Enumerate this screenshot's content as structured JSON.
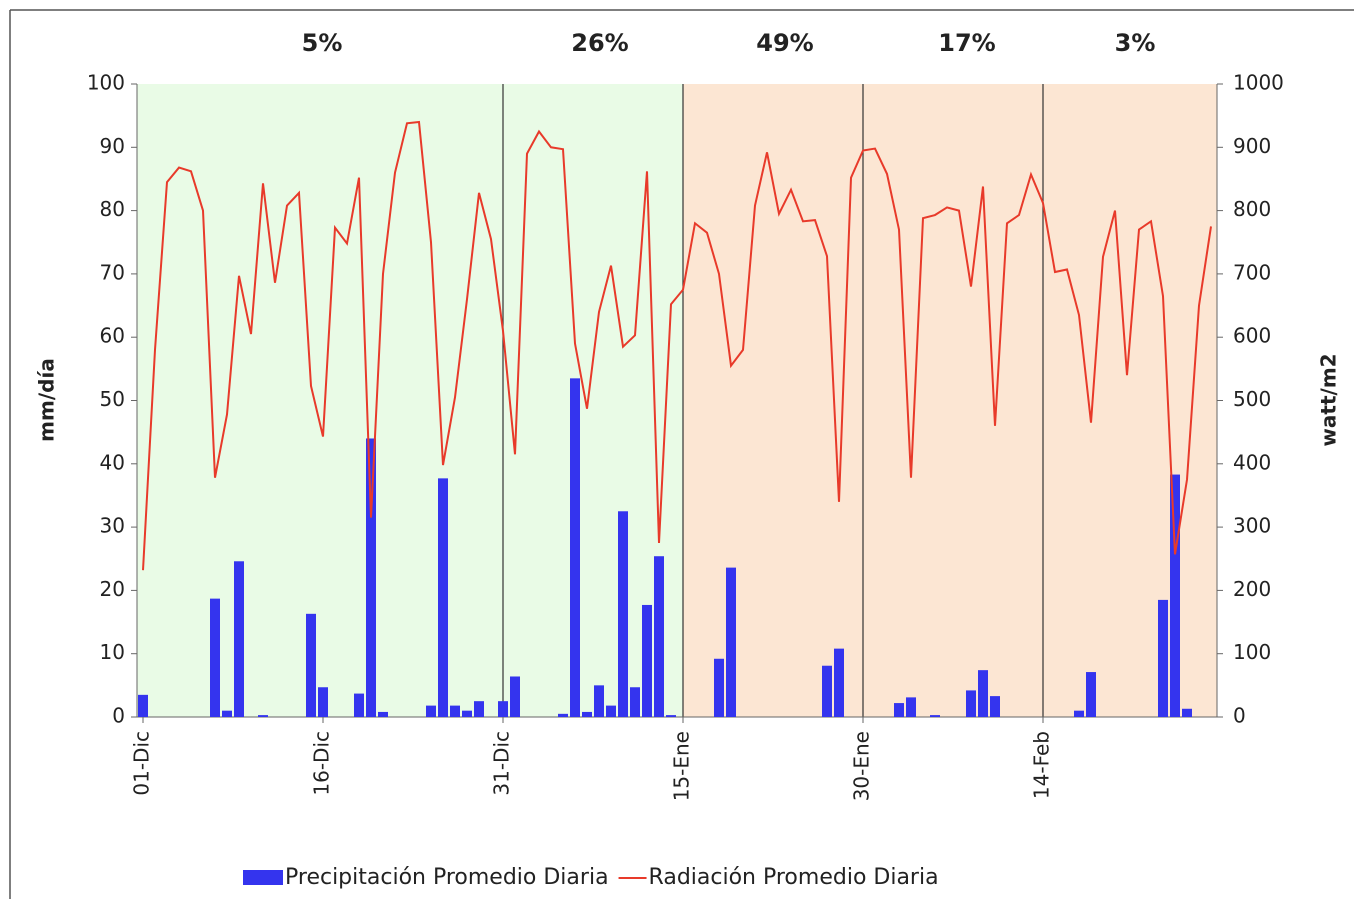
{
  "chart_data": {
    "type": "bar-line",
    "period_labels": [
      "5%",
      "26%",
      "49%",
      "17%",
      "3%"
    ],
    "y_label": "mm/día",
    "y2_label": "watt/m2",
    "categories": [
      "01-Dic",
      null,
      null,
      null,
      null,
      null,
      null,
      null,
      null,
      null,
      null,
      null,
      null,
      null,
      null,
      "16-Dic",
      null,
      null,
      null,
      null,
      null,
      null,
      null,
      null,
      null,
      null,
      null,
      null,
      null,
      null,
      "31-Dic",
      null,
      null,
      null,
      null,
      null,
      null,
      null,
      null,
      null,
      null,
      null,
      null,
      null,
      null,
      "15-Ene",
      null,
      null,
      null,
      null,
      null,
      null,
      null,
      null,
      null,
      null,
      null,
      null,
      null,
      null,
      "30-Ene",
      null,
      null,
      null,
      null,
      null,
      null,
      null,
      null,
      null,
      null,
      null,
      null,
      null,
      null,
      "14-Feb",
      null,
      null,
      null,
      null,
      null,
      null,
      null,
      null,
      null,
      null,
      null,
      null,
      null,
      null
    ],
    "series": [
      {
        "name": "Precipitación Promedio Diaria",
        "type": "bar",
        "color": "#3434ee",
        "values": [
          3.5,
          0,
          0,
          0,
          0,
          0,
          18.7,
          1,
          24.6,
          0,
          0.3,
          0,
          0,
          0,
          16.3,
          4.7,
          0,
          0,
          3.7,
          44,
          0.8,
          0,
          0,
          0,
          1.8,
          37.7,
          1.8,
          1,
          2.5,
          0,
          2.5,
          6.4,
          0,
          0,
          0,
          0.5,
          53.5,
          0.8,
          5,
          1.8,
          32.5,
          4.7,
          17.7,
          25.4,
          0.3,
          0,
          0,
          0,
          9.2,
          23.6,
          0,
          0,
          0,
          0,
          0,
          0,
          0,
          8.1,
          10.8,
          0,
          0,
          0,
          0,
          2.2,
          3.1,
          0,
          0.3,
          0,
          0,
          4.2,
          7.4,
          3.3,
          0,
          0,
          0,
          0,
          0,
          0,
          1,
          7.1,
          0,
          0,
          0,
          0,
          0,
          18.5,
          38.3,
          1.3,
          0,
          0
        ]
      },
      {
        "name": "Radiación Promedio Diaria",
        "type": "line",
        "axis": "y2",
        "color": "#e83a2a",
        "values": [
          232,
          580,
          845,
          868,
          862,
          800,
          378,
          478,
          697,
          605,
          843,
          686,
          808,
          828,
          523,
          443,
          773,
          748,
          852,
          315,
          700,
          860,
          938,
          940,
          750,
          398,
          505,
          660,
          828,
          755,
          610,
          415,
          890,
          925,
          900,
          897,
          590,
          487,
          640,
          713,
          585,
          603,
          862,
          275,
          652,
          675,
          780,
          765,
          700,
          555,
          580,
          808,
          892,
          795,
          833,
          783,
          785,
          728,
          340,
          852,
          895,
          898,
          858,
          770,
          378,
          788,
          793,
          805,
          800,
          680,
          838,
          460,
          780,
          793,
          857,
          812,
          703,
          707,
          635,
          465,
          727,
          800,
          540,
          770,
          783,
          665,
          257,
          375,
          650,
          775
        ]
      }
    ],
    "ylim": [
      0,
      100
    ],
    "yticks": [
      0,
      10,
      20,
      30,
      40,
      50,
      60,
      70,
      80,
      90,
      100
    ],
    "y2lim": [
      0,
      1000
    ],
    "y2ticks": [
      0,
      100,
      200,
      300,
      400,
      500,
      600,
      700,
      800,
      900,
      1000
    ],
    "legend": "bottom"
  }
}
